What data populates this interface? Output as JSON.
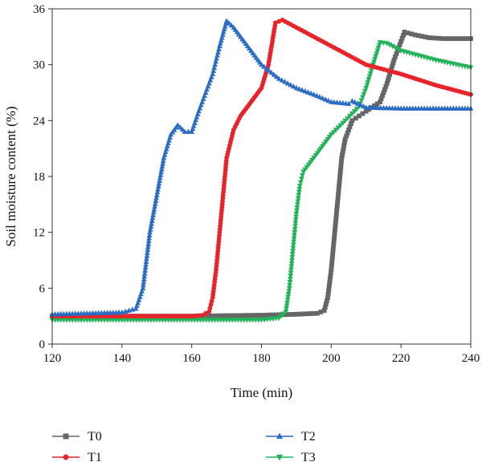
{
  "chart_data": {
    "type": "line",
    "xlabel": "Time (min)",
    "ylabel": "Soil moisture content (%)",
    "xlim": [
      120,
      240
    ],
    "ylim": [
      0,
      36
    ],
    "xticks": [
      120,
      140,
      160,
      180,
      200,
      220,
      240
    ],
    "yticks": [
      0,
      6,
      12,
      18,
      24,
      30,
      36
    ],
    "xtick_labels": [
      "120",
      "140",
      "160",
      "180",
      "200",
      "220",
      "240"
    ],
    "ytick_labels": [
      "0",
      "6",
      "12",
      "18",
      "24",
      "30",
      "36"
    ],
    "grid": false,
    "legend_position": "bottom",
    "series": [
      {
        "name": "T0",
        "color": "#666666",
        "marker": "square",
        "x": [
          120,
          140,
          160,
          180,
          190,
          196,
          198,
          199,
          200,
          201,
          202,
          203,
          204,
          206,
          208,
          210,
          214,
          216,
          218,
          220,
          221,
          224,
          228,
          232,
          236,
          240
        ],
        "y": [
          3.0,
          3.0,
          3.0,
          3.1,
          3.2,
          3.3,
          3.6,
          5.0,
          8.0,
          12.0,
          16.0,
          20.0,
          22.0,
          24.0,
          24.5,
          25.0,
          26.0,
          28.0,
          30.5,
          32.5,
          33.5,
          33.2,
          32.9,
          32.8,
          32.8,
          32.8
        ]
      },
      {
        "name": "T1",
        "color": "#e8232a",
        "marker": "circle",
        "x": [
          120,
          140,
          160,
          163,
          165,
          166,
          167,
          168,
          169,
          170,
          172,
          174,
          176,
          178,
          180,
          182,
          184,
          186,
          190,
          200,
          210,
          220,
          230,
          240
        ],
        "y": [
          3.0,
          3.0,
          3.0,
          3.1,
          3.5,
          5.0,
          8.0,
          12.0,
          16.0,
          20.0,
          23.0,
          24.5,
          25.5,
          26.5,
          27.5,
          30.0,
          34.5,
          34.8,
          34.0,
          32.0,
          30.0,
          29.0,
          27.8,
          26.8
        ]
      },
      {
        "name": "T2",
        "color": "#2b6cc4",
        "marker": "triangle-up",
        "x": [
          120,
          130,
          140,
          144,
          146,
          148,
          150,
          152,
          154,
          156,
          158,
          160,
          162,
          164,
          166,
          168,
          170,
          172,
          176,
          180,
          185,
          190,
          195,
          200,
          205,
          206,
          210,
          220,
          230,
          240
        ],
        "y": [
          3.2,
          3.3,
          3.4,
          3.8,
          6.0,
          12.0,
          16.0,
          20.0,
          22.5,
          23.5,
          22.8,
          22.8,
          25.0,
          27.0,
          29.0,
          32.0,
          34.7,
          34.0,
          32.0,
          30.0,
          28.5,
          27.5,
          26.8,
          26.0,
          25.8,
          26.1,
          25.4,
          25.3,
          25.3,
          25.3
        ]
      },
      {
        "name": "T3",
        "color": "#22b35a",
        "marker": "triangle-down",
        "x": [
          120,
          140,
          160,
          180,
          185,
          187,
          188,
          189,
          190,
          191,
          192,
          194,
          196,
          198,
          200,
          204,
          208,
          210,
          212,
          214,
          216,
          220,
          230,
          240
        ],
        "y": [
          2.6,
          2.6,
          2.6,
          2.6,
          2.8,
          3.5,
          6.0,
          10.0,
          14.0,
          17.0,
          18.5,
          19.5,
          20.5,
          21.5,
          22.5,
          24.0,
          25.5,
          27.5,
          30.0,
          32.4,
          32.3,
          31.5,
          30.5,
          29.7
        ]
      }
    ]
  }
}
